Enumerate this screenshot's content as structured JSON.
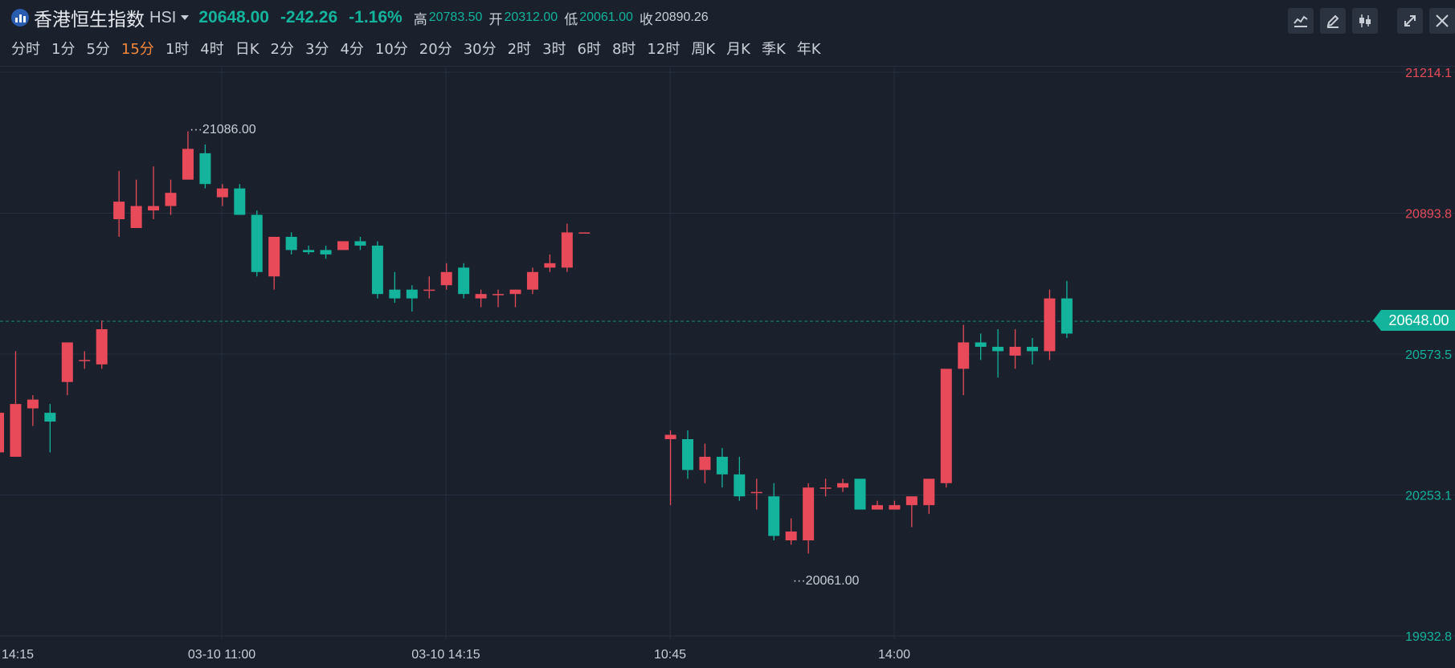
{
  "header": {
    "name": "香港恒生指数",
    "code": "HSI",
    "last": "20648.00",
    "change": "-242.26",
    "change_pct": "-1.16%",
    "high_label": "高",
    "high": "20783.50",
    "open_label": "开",
    "open": "20312.00",
    "low_label": "低",
    "low": "20061.00",
    "close_label": "收",
    "close": "20890.26"
  },
  "periods": [
    "分时",
    "1分",
    "5分",
    "15分",
    "1时",
    "4时",
    "日K",
    "2分",
    "3分",
    "4分",
    "10分",
    "20分",
    "30分",
    "2时",
    "3时",
    "6时",
    "8时",
    "12时",
    "周K",
    "月K",
    "季K",
    "年K"
  ],
  "active_period": "15分",
  "toolbar": [
    "indicator-icon",
    "draw-pen-icon",
    "candle-style-icon",
    "expand-icon",
    "close-icon"
  ],
  "colors": {
    "up": "#e84a5a",
    "down": "#13b39c",
    "active": "#f5873a",
    "background": "#1a202c"
  },
  "chart_data": {
    "type": "candlestick",
    "ylim": [
      19932.8,
      21214.1
    ],
    "y_ticks": [
      "21214.1",
      "20893.8",
      "20573.5",
      "20253.1",
      "19932.8"
    ],
    "x_ticks": [
      "14:15",
      "03-10 11:00",
      "03-10 14:15",
      "10:45",
      "14:00"
    ],
    "last_price": "20648.00",
    "high_marker": "21086.00",
    "low_marker": "20061.00",
    "candles": [
      [
        20350,
        20450,
        20440,
        20330
      ],
      [
        20340,
        20580,
        20460,
        20360
      ],
      [
        20450,
        20480,
        20470,
        20410
      ],
      [
        20440,
        20460,
        20420,
        20350
      ],
      [
        20510,
        20570,
        20600,
        20480
      ],
      [
        20560,
        20580,
        20560,
        20540
      ],
      [
        20550,
        20650,
        20630,
        20540
      ],
      [
        20880,
        20990,
        20920,
        20840
      ],
      [
        20860,
        20970,
        20910,
        20880
      ],
      [
        20900,
        21000,
        20910,
        20880
      ],
      [
        20910,
        20970,
        20940,
        20890
      ],
      [
        20970,
        21080,
        21040,
        20990
      ],
      [
        21030,
        21050,
        20960,
        20950
      ],
      [
        20930,
        20960,
        20950,
        20910
      ],
      [
        20950,
        20960,
        20890,
        20890
      ],
      [
        20890,
        20900,
        20760,
        20750
      ],
      [
        20750,
        20770,
        20840,
        20720
      ],
      [
        20840,
        20850,
        20810,
        20800
      ],
      [
        20810,
        20820,
        20805,
        20800
      ],
      [
        20810,
        20820,
        20800,
        20790
      ],
      [
        20810,
        20820,
        20830,
        20810
      ],
      [
        20830,
        20840,
        20820,
        20810
      ],
      [
        20820,
        20830,
        20710,
        20700
      ],
      [
        20720,
        20760,
        20700,
        20690
      ],
      [
        20720,
        20730,
        20700,
        20670
      ],
      [
        20720,
        20750,
        20720,
        20700
      ],
      [
        20730,
        20780,
        20760,
        20720
      ],
      [
        20770,
        20780,
        20710,
        20700
      ],
      [
        20700,
        20720,
        20710,
        20680
      ],
      [
        20710,
        20720,
        20710,
        20680
      ],
      [
        20710,
        20720,
        20720,
        20680
      ],
      [
        20720,
        20770,
        20760,
        20710
      ],
      [
        20770,
        20800,
        20780,
        20760
      ],
      [
        20770,
        20870,
        20850,
        20760
      ],
      [
        20850,
        20850,
        20850,
        20850
      ],
      [
        20380,
        20400,
        20390,
        20230
      ],
      [
        20380,
        20400,
        20310,
        20290
      ],
      [
        20310,
        20370,
        20340,
        20280
      ],
      [
        20340,
        20360,
        20300,
        20270
      ],
      [
        20300,
        20340,
        20250,
        20240
      ],
      [
        20260,
        20290,
        20260,
        20220
      ],
      [
        20250,
        20280,
        20160,
        20150
      ],
      [
        20150,
        20200,
        20170,
        20140
      ],
      [
        20150,
        20280,
        20270,
        20120
      ],
      [
        20270,
        20290,
        20270,
        20250
      ],
      [
        20270,
        20290,
        20280,
        20260
      ],
      [
        20290,
        20290,
        20220,
        20220
      ],
      [
        20220,
        20240,
        20230,
        20220
      ],
      [
        20220,
        20240,
        20230,
        20220
      ],
      [
        20230,
        20250,
        20250,
        20180
      ],
      [
        20230,
        20280,
        20290,
        20210
      ],
      [
        20280,
        20470,
        20540,
        20270
      ],
      [
        20540,
        20640,
        20600,
        20480
      ],
      [
        20600,
        20620,
        20590,
        20560
      ],
      [
        20590,
        20630,
        20580,
        20520
      ],
      [
        20570,
        20630,
        20590,
        20540
      ],
      [
        20590,
        20610,
        20580,
        20550
      ],
      [
        20580,
        20720,
        20700,
        20560
      ],
      [
        20700,
        20740,
        20620,
        20610
      ]
    ]
  }
}
